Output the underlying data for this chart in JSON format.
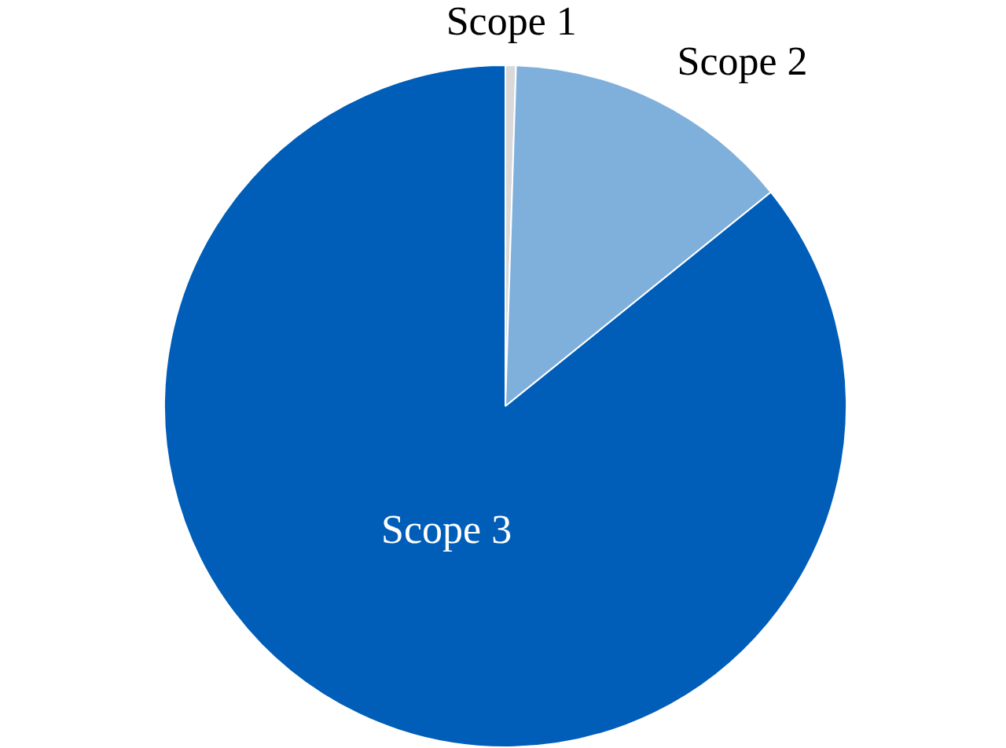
{
  "chart_data": {
    "type": "pie",
    "categories": [
      "Scope 1",
      "Scope 2",
      "Scope 3"
    ],
    "values": [
      0.5,
      13.7,
      85.8
    ],
    "colors": [
      "#d9d9d9",
      "#7fb0dc",
      "#005eb8"
    ]
  }
}
